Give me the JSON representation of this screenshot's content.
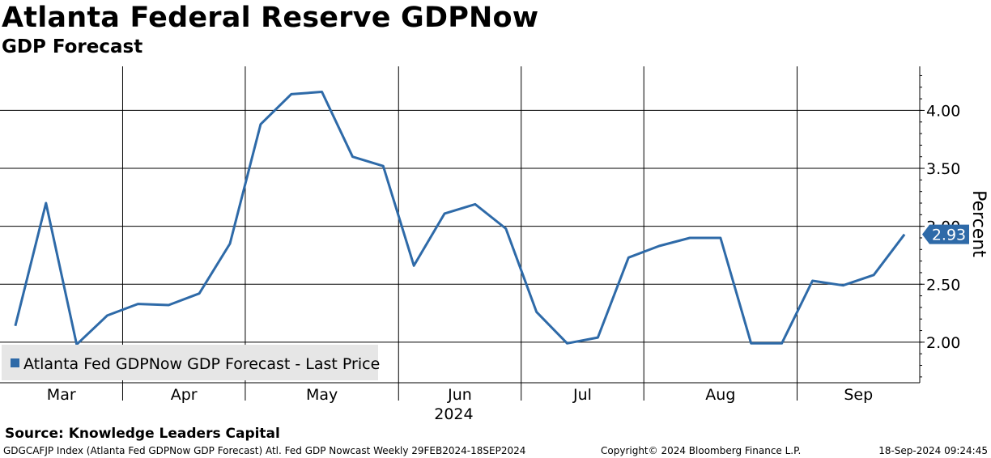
{
  "header": {
    "title": "Atlanta Federal Reserve GDPNow",
    "subtitle": "GDP Forecast"
  },
  "footer": {
    "source": "Source: Knowledge Leaders Capital",
    "index_info": "GDGCAFJP Index (Atlanta Fed GDPNow GDP Forecast) Atl. Fed GDP Nowcast  Weekly 29FEB2024-18SEP2024",
    "copyright": "Copyright© 2024 Bloomberg Finance L.P.",
    "timestamp": "18-Sep-2024 09:24:45"
  },
  "colors": {
    "series": "#2e6aa8",
    "grid": "#000000",
    "legend_bg": "#e6e6e6"
  },
  "chart_data": {
    "type": "line",
    "title": "Atlanta Federal Reserve GDPNow",
    "subtitle": "GDP Forecast",
    "ylabel": "Percent",
    "ylim": [
      1.65,
      4.38
    ],
    "yticks": [
      2.0,
      2.5,
      3.0,
      3.5,
      4.0
    ],
    "ytick_labels": [
      "2.00",
      "2.50",
      "3.00",
      "3.50",
      "4.00"
    ],
    "xlim": [
      -0.5,
      29.5
    ],
    "month_labels": [
      "Mar",
      "Apr",
      "May",
      "Jun",
      "Jul",
      "Aug",
      "Sep"
    ],
    "month_label_x": [
      1.5,
      5.5,
      10,
      14.5,
      18.5,
      23,
      27.5
    ],
    "month_boundaries": [
      3.5,
      7.5,
      12.5,
      16.5,
      20.5,
      25.5
    ],
    "year_label": "2024",
    "year_label_x": 14.3,
    "legend": "Atlanta Fed GDPNow GDP Forecast - Last Price",
    "last_price_label": "2.93",
    "series": [
      {
        "name": "Atlanta Fed GDPNow GDP Forecast - Last Price",
        "values": [
          2.14,
          3.2,
          1.98,
          2.23,
          2.33,
          2.32,
          2.42,
          2.85,
          3.88,
          4.14,
          4.16,
          3.6,
          3.52,
          2.66,
          3.11,
          3.19,
          2.98,
          2.26,
          1.99,
          2.04,
          2.73,
          2.83,
          2.9,
          2.9,
          1.99,
          1.99,
          2.53,
          2.49,
          2.58,
          2.93
        ]
      }
    ]
  }
}
